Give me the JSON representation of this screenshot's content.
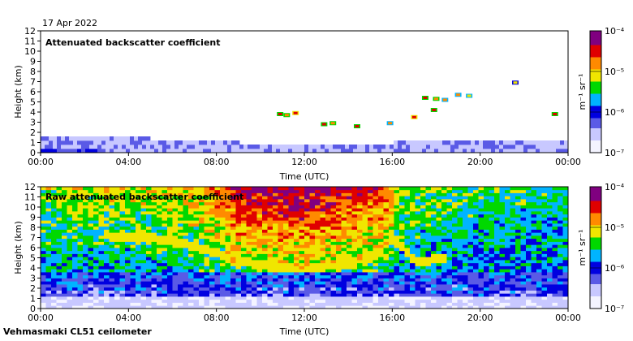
{
  "date_label": "17 Apr 2022",
  "instrument_label": "Vehmasmaki CL51 ceilometer",
  "colors": {
    "scale": [
      "#f4f4ff",
      "#c8c8ff",
      "#5a5ae6",
      "#0000e0",
      "#00b4ff",
      "#00d800",
      "#f0e600",
      "#ff8a00",
      "#e00000",
      "#800080"
    ]
  },
  "chart_data": [
    {
      "type": "heatmap",
      "title": "Attenuated backscatter coefficient",
      "xlabel": "Time (UTC)",
      "ylabel": "Height (km)",
      "x_ticks": [
        "00:00",
        "04:00",
        "08:00",
        "12:00",
        "16:00",
        "20:00",
        "00:00"
      ],
      "xlim_hours": [
        0,
        24
      ],
      "y_ticks": [
        0,
        1,
        2,
        3,
        4,
        5,
        6,
        7,
        8,
        9,
        10,
        11,
        12
      ],
      "ylim": [
        0,
        12
      ],
      "colorbar": {
        "unit": "m⁻¹ sr⁻¹",
        "ticks": [
          "10⁻⁴",
          "10⁻⁵",
          "10⁻⁶",
          "10⁻⁷"
        ],
        "range_exponent": [
          -7,
          -4
        ],
        "scale": "log"
      },
      "features": {
        "boundary_layer_top_km": [
          [
            0,
            1.7
          ],
          [
            3,
            1.6
          ],
          [
            6,
            1.3
          ],
          [
            9,
            1.0
          ],
          [
            12,
            0.8
          ],
          [
            16,
            1.0
          ],
          [
            20,
            1.1
          ],
          [
            24,
            1.3
          ]
        ],
        "cloud_patches": [
          {
            "t": 10.9,
            "h": 3.8,
            "level": 0.82
          },
          {
            "t": 11.2,
            "h": 3.7,
            "level": 0.78
          },
          {
            "t": 11.6,
            "h": 3.9,
            "level": 0.85
          },
          {
            "t": 12.9,
            "h": 2.8,
            "level": 0.8
          },
          {
            "t": 13.3,
            "h": 2.9,
            "level": 0.75
          },
          {
            "t": 14.4,
            "h": 2.6,
            "level": 0.83
          },
          {
            "t": 15.9,
            "h": 2.9,
            "level": 0.72
          },
          {
            "t": 17.0,
            "h": 3.5,
            "level": 0.86
          },
          {
            "t": 17.5,
            "h": 5.4,
            "level": 0.8
          },
          {
            "t": 17.9,
            "h": 4.2,
            "level": 0.84
          },
          {
            "t": 18.0,
            "h": 5.3,
            "level": 0.78
          },
          {
            "t": 18.4,
            "h": 5.2,
            "level": 0.74
          },
          {
            "t": 19.0,
            "h": 5.7,
            "level": 0.7
          },
          {
            "t": 19.5,
            "h": 5.6,
            "level": 0.68
          },
          {
            "t": 21.6,
            "h": 6.9,
            "level": 0.6
          },
          {
            "t": 23.4,
            "h": 3.8,
            "level": 0.8
          }
        ]
      }
    },
    {
      "type": "heatmap",
      "title": "Raw attenuated backscatter coefficient",
      "xlabel": "Time (UTC)",
      "ylabel": "Height (km)",
      "x_ticks": [
        "00:00",
        "04:00",
        "08:00",
        "12:00",
        "16:00",
        "20:00",
        "00:00"
      ],
      "xlim_hours": [
        0,
        24
      ],
      "y_ticks": [
        0,
        1,
        2,
        3,
        4,
        5,
        6,
        7,
        8,
        9,
        10,
        11,
        12
      ],
      "ylim": [
        0,
        12
      ],
      "colorbar": {
        "unit": "m⁻¹ sr⁻¹",
        "ticks": [
          "10⁻⁴",
          "10⁻⁵",
          "10⁻⁶",
          "10⁻⁷"
        ],
        "range_exponent": [
          -7,
          -4
        ],
        "scale": "log"
      },
      "features": {
        "aerosol_layer_km": [
          [
            3.0,
            7.2
          ],
          [
            4.5,
            7.0
          ],
          [
            6.0,
            6.8
          ],
          [
            8.0,
            5.5
          ],
          [
            10.0,
            4.3
          ],
          [
            12.0,
            3.9
          ],
          [
            14.0,
            4.5
          ],
          [
            15.5,
            5.5
          ],
          [
            16.0,
            7.5
          ],
          [
            16.5,
            6.0
          ],
          [
            17.0,
            4.6
          ],
          [
            18.5,
            5.0
          ]
        ],
        "noise_high_intensity_hours": [
          [
            0,
            0.45
          ],
          [
            3,
            0.5
          ],
          [
            6,
            0.55
          ],
          [
            8,
            0.7
          ],
          [
            9,
            0.95
          ],
          [
            12,
            1.0
          ],
          [
            14,
            0.9
          ],
          [
            15.8,
            0.8
          ],
          [
            16.3,
            0.45
          ],
          [
            20,
            0.35
          ],
          [
            24,
            0.3
          ]
        ]
      }
    }
  ]
}
